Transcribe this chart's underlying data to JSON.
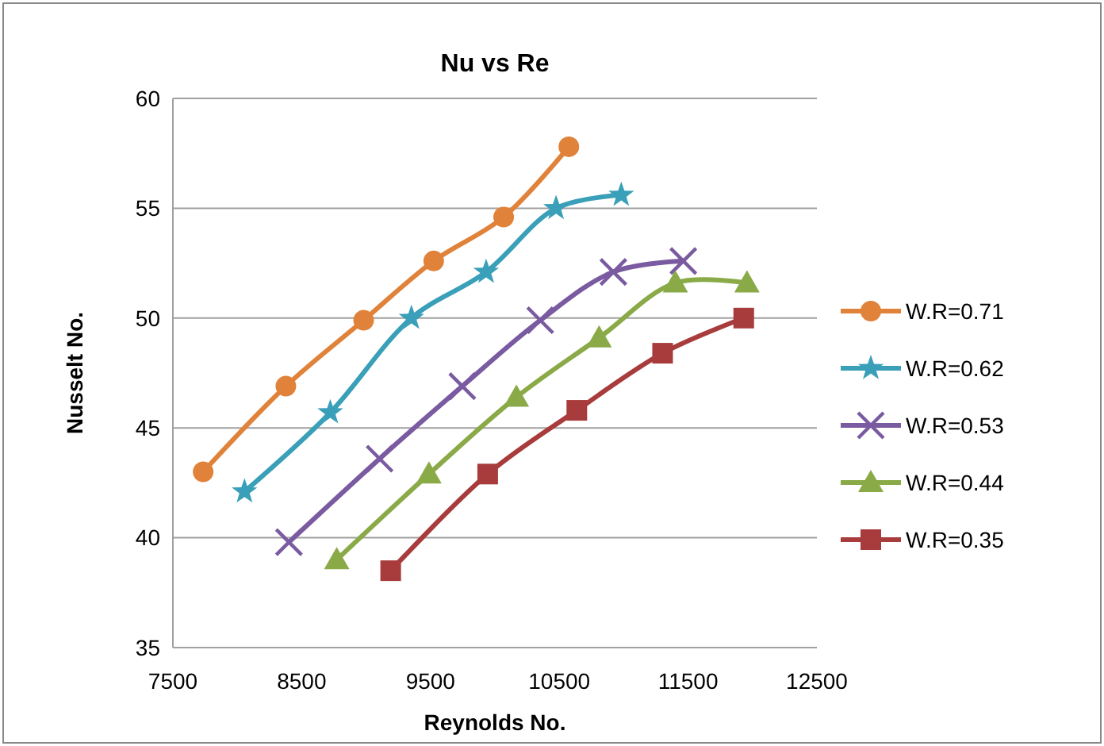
{
  "chart_data": {
    "type": "line",
    "title": "Nu vs Re",
    "xlabel": "Reynolds No.",
    "ylabel": "Nusselt No.",
    "xlim": [
      7500,
      12500
    ],
    "xticks": [
      7500,
      8500,
      9500,
      10500,
      11500,
      12500
    ],
    "ylim": [
      35,
      60
    ],
    "yticks": [
      35,
      40,
      45,
      50,
      55,
      60
    ],
    "grid": "y",
    "legend": "right",
    "series": [
      {
        "name": "W.R=0.71",
        "color": "#e0823a",
        "marker": "circle",
        "x": [
          7735,
          8377,
          8981,
          9525,
          10068,
          10574
        ],
        "values": [
          43.0,
          46.9,
          49.9,
          52.6,
          54.6,
          57.8
        ]
      },
      {
        "name": "W.R=0.62",
        "color": "#3a9fb8",
        "marker": "star",
        "x": [
          8056,
          8722,
          9352,
          9932,
          10475,
          10981
        ],
        "values": [
          42.1,
          45.7,
          50.0,
          52.1,
          55.0,
          55.6
        ]
      },
      {
        "name": "W.R=0.53",
        "color": "#7a5aa0",
        "marker": "cross",
        "x": [
          8401,
          9105,
          9747,
          10352,
          10920,
          11463
        ],
        "values": [
          39.8,
          43.6,
          46.9,
          49.9,
          52.1,
          52.6
        ]
      },
      {
        "name": "W.R=0.44",
        "color": "#8aaa48",
        "marker": "triangle",
        "x": [
          8772,
          9488,
          10167,
          10809,
          11401,
          11957
        ],
        "values": [
          39.0,
          42.9,
          46.4,
          49.1,
          51.6,
          51.6
        ]
      },
      {
        "name": "W.R=0.35",
        "color": "#a83c3c",
        "marker": "square",
        "x": [
          9191,
          9944,
          10636,
          11302,
          11932
        ],
        "values": [
          38.5,
          42.9,
          45.8,
          48.4,
          50.0
        ]
      }
    ]
  }
}
